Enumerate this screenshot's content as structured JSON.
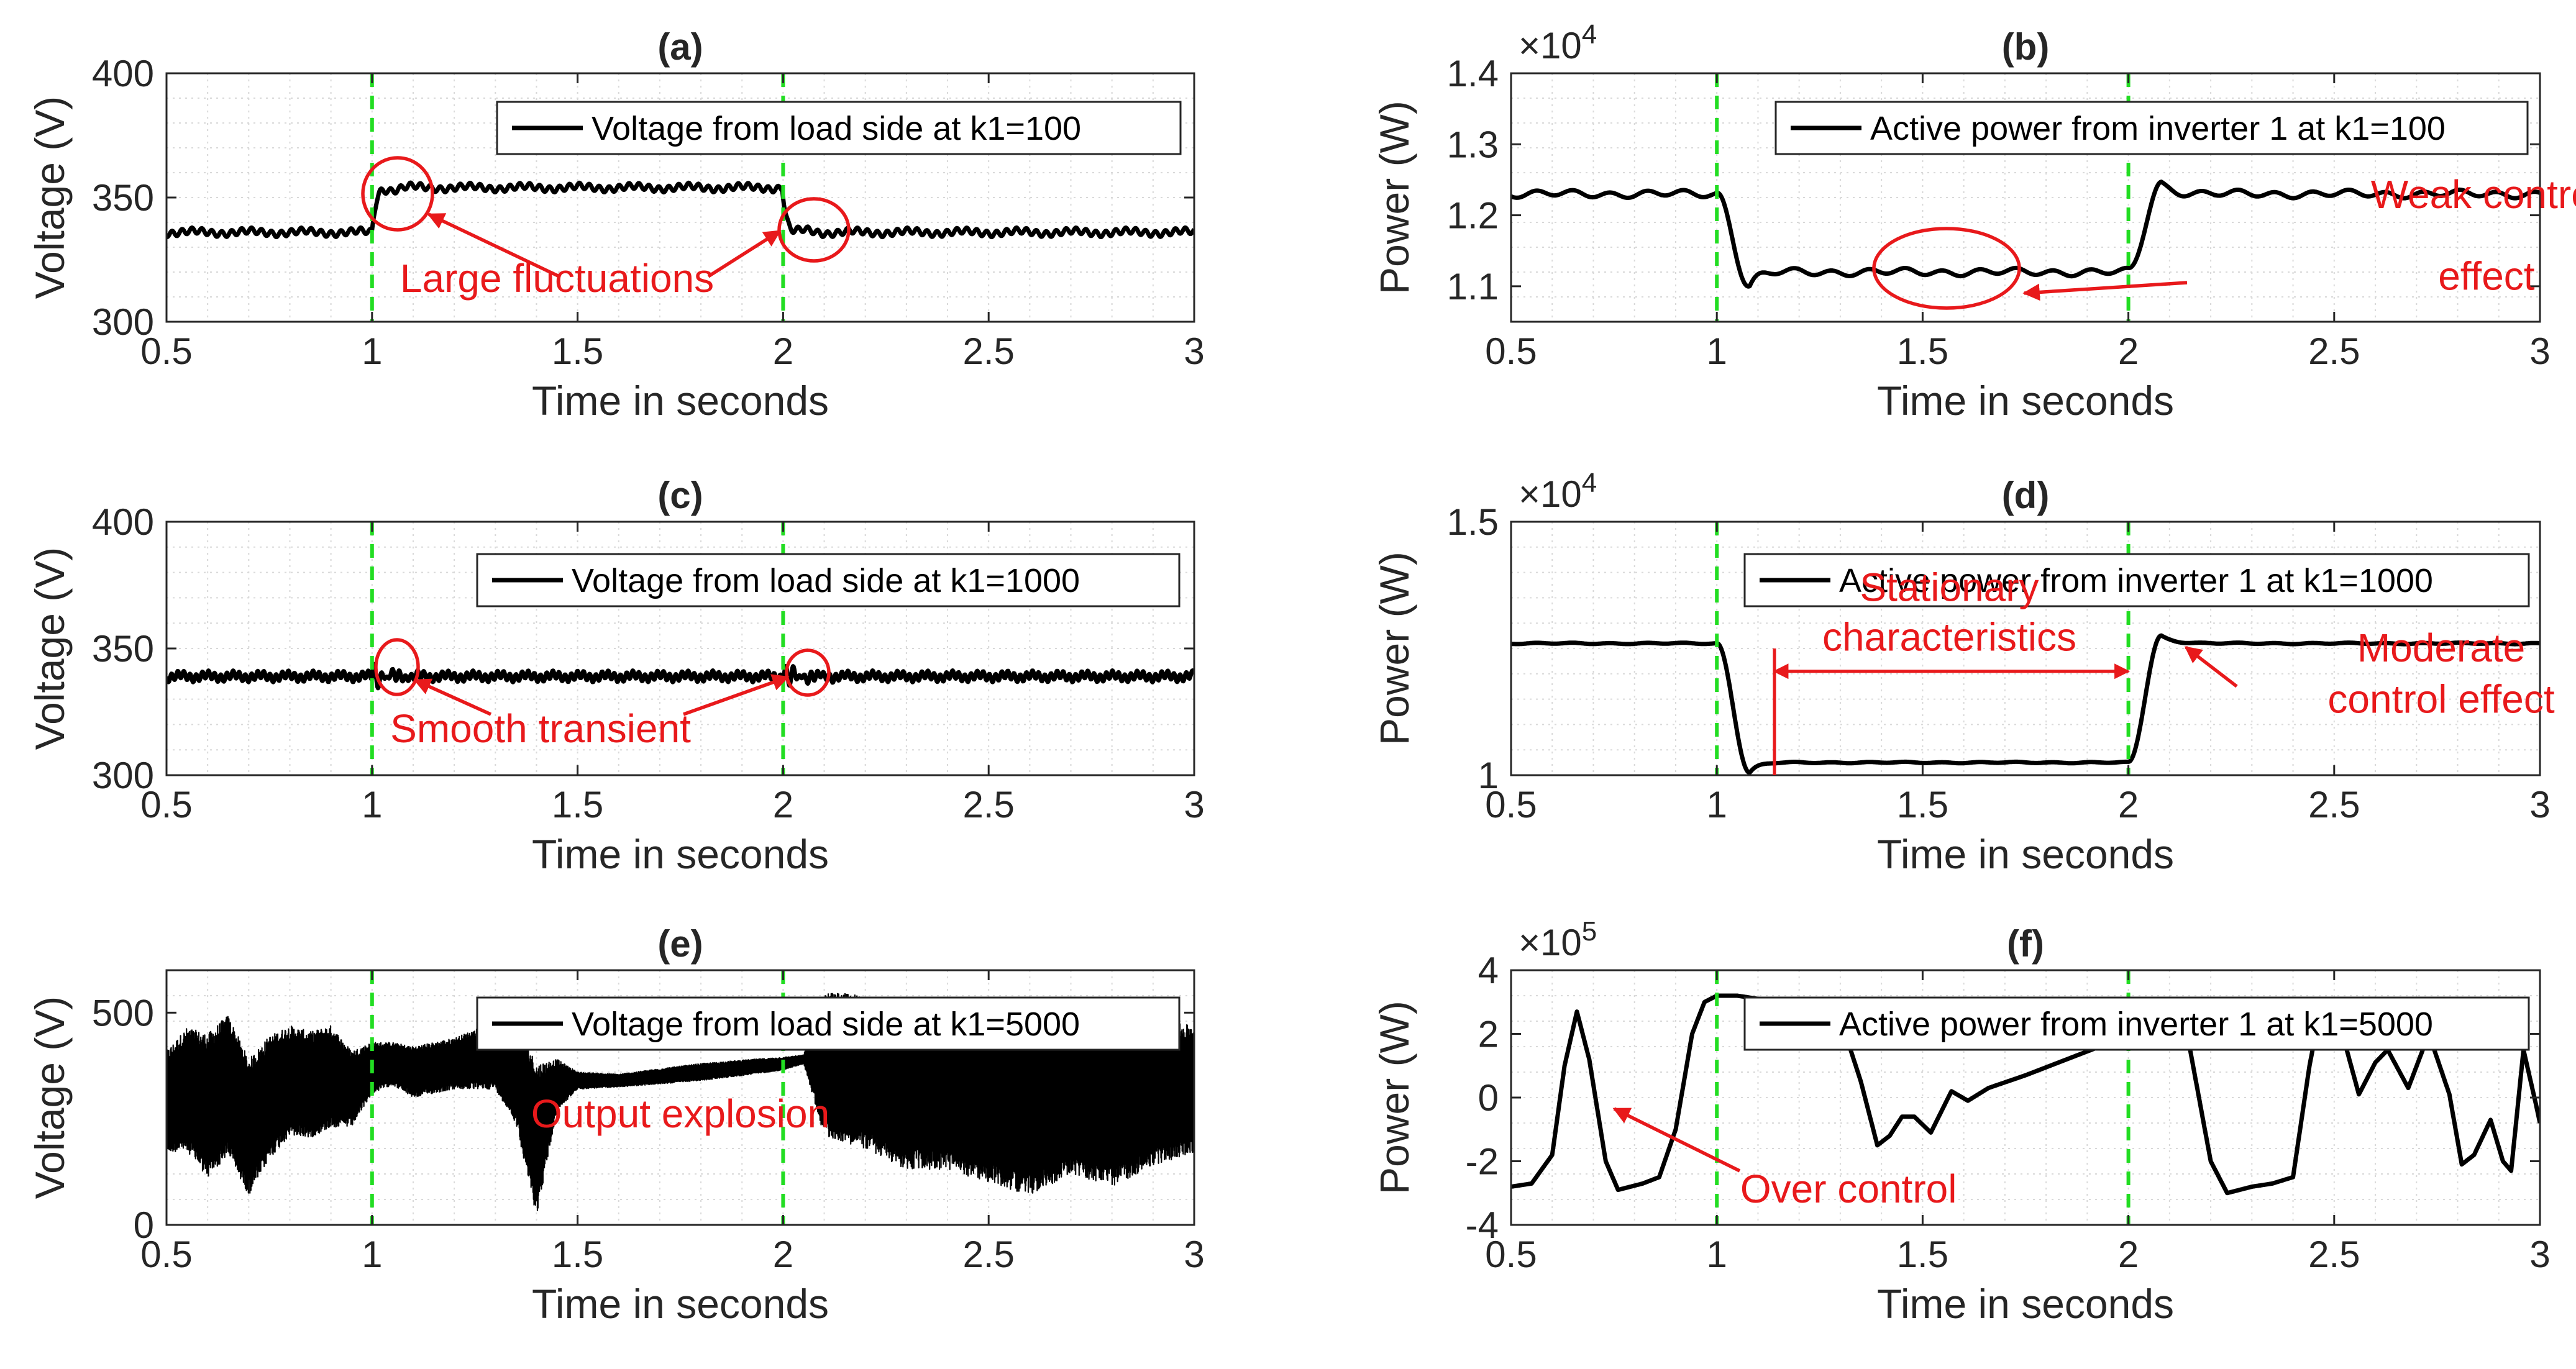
{
  "figure": {
    "background": "#ffffff",
    "vline_color": "#22dd22",
    "annotation_color": "#e8191b",
    "line_color": "#000000"
  },
  "chart_data": [
    {
      "id": "a",
      "type": "line",
      "title": "(a)",
      "xlabel": "Time in seconds",
      "ylabel": "Voltage (V)",
      "xlim": [
        0.5,
        3
      ],
      "ylim": [
        300,
        400
      ],
      "xticks": [
        0.5,
        1,
        1.5,
        2,
        2.5,
        3
      ],
      "xtick_labels": [
        "0.5",
        "1",
        "1.5",
        "2",
        "2.5",
        "3"
      ],
      "yticks": [
        300,
        350,
        400
      ],
      "ytick_labels": [
        "300",
        "350",
        "400"
      ],
      "legend": "Voltage from load side at k1=100",
      "vlines": [
        1,
        2
      ],
      "grid": true,
      "series_model": {
        "kind": "voltage_step",
        "base": 336,
        "high": 354,
        "step_up": 1.0,
        "step_down": 2.0,
        "overshoot": 4,
        "undershoot": -5,
        "ripple": 1.2
      },
      "annotations": [
        {
          "text": "Large fluctuations",
          "x": 1.45,
          "y": 312
        }
      ]
    },
    {
      "id": "b",
      "type": "line",
      "title": "(b)",
      "xlabel": "Time in seconds",
      "ylabel": "Power (W)",
      "xlim": [
        0.5,
        3
      ],
      "ylim": [
        10500,
        14000
      ],
      "xticks": [
        0.5,
        1,
        1.5,
        2,
        2.5,
        3
      ],
      "xtick_labels": [
        "0.5",
        "1",
        "1.5",
        "2",
        "2.5",
        "3"
      ],
      "yticks": [
        11000,
        12000,
        13000,
        14000
      ],
      "ytick_labels": [
        "1.1",
        "1.2",
        "1.3",
        "1.4"
      ],
      "exponent_base": "×10",
      "exponent_power": "4",
      "legend": "Active power from inverter 1 at k1=100",
      "vlines": [
        1,
        2
      ],
      "grid": true,
      "series_model": {
        "kind": "power_step",
        "base": 12300,
        "low": 11200,
        "step_down": 1.0,
        "step_up": 2.0,
        "undershoot": 11000,
        "overshoot": 12450,
        "ripple": 40
      },
      "annotations": [
        {
          "text": "Weak control",
          "x": 2.87,
          "y": 12100
        },
        {
          "text": "effect",
          "x": 2.87,
          "y": 10950
        }
      ]
    },
    {
      "id": "c",
      "type": "line",
      "title": "(c)",
      "xlabel": "Time in seconds",
      "ylabel": "Voltage (V)",
      "xlim": [
        0.5,
        3
      ],
      "ylim": [
        300,
        400
      ],
      "xticks": [
        0.5,
        1,
        1.5,
        2,
        2.5,
        3
      ],
      "xtick_labels": [
        "0.5",
        "1",
        "1.5",
        "2",
        "2.5",
        "3"
      ],
      "yticks": [
        300,
        350,
        400
      ],
      "ytick_labels": [
        "300",
        "350",
        "400"
      ],
      "legend": "Voltage from load side at k1=1000",
      "vlines": [
        1,
        2
      ],
      "grid": true,
      "series_model": {
        "kind": "voltage_flat",
        "base": 339,
        "ripple": 1.5,
        "transient_amp": 4
      },
      "annotations": [
        {
          "text": "Smooth transient",
          "x": 1.41,
          "y": 313
        }
      ]
    },
    {
      "id": "d",
      "type": "line",
      "title": "(d)",
      "xlabel": "Time in seconds",
      "ylabel": "Power (W)",
      "xlim": [
        0.5,
        3
      ],
      "ylim": [
        10000,
        15000
      ],
      "xticks": [
        0.5,
        1,
        1.5,
        2,
        2.5,
        3
      ],
      "xtick_labels": [
        "0.5",
        "1",
        "1.5",
        "2",
        "2.5",
        "3"
      ],
      "yticks": [
        10000,
        15000
      ],
      "ytick_labels": [
        "1",
        "1.5"
      ],
      "exponent_base": "×10",
      "exponent_power": "4",
      "legend": "Active power from inverter 1 at k1=1000",
      "vlines": [
        1,
        2
      ],
      "grid": true,
      "series_model": {
        "kind": "power_step",
        "base": 12600,
        "low": 10250,
        "step_down": 1.0,
        "step_up": 2.0,
        "undershoot": 10050,
        "overshoot": 12750,
        "ripple": 10
      },
      "span_marker": {
        "x0": 1.14,
        "x1": 2.0,
        "y": 12050
      },
      "annotations": [
        {
          "text": "Stationary",
          "x": 1.565,
          "y": 13440
        },
        {
          "text": "characteristics",
          "x": 1.565,
          "y": 12460
        },
        {
          "text": "Moderate",
          "x": 2.76,
          "y": 12240
        },
        {
          "text": "control effect",
          "x": 2.76,
          "y": 11230
        }
      ]
    },
    {
      "id": "e",
      "type": "line",
      "title": "(e)",
      "xlabel": "Time in seconds",
      "ylabel": "Voltage (V)",
      "xlim": [
        0.5,
        3
      ],
      "ylim": [
        0,
        600
      ],
      "xticks": [
        0.5,
        1,
        1.5,
        2,
        2.5,
        3
      ],
      "xtick_labels": [
        "0.5",
        "1",
        "1.5",
        "2",
        "2.5",
        "3"
      ],
      "yticks": [
        0,
        500
      ],
      "ytick_labels": [
        "0",
        "500"
      ],
      "legend": "Voltage from load side at k1=5000",
      "vlines": [
        1,
        2
      ],
      "grid": true,
      "series_model": {
        "kind": "voltage_explosion"
      },
      "annotations": [
        {
          "text": "Output explosion",
          "x": 1.75,
          "y": 230
        }
      ]
    },
    {
      "id": "f",
      "type": "line",
      "title": "(f)",
      "xlabel": "Time in seconds",
      "ylabel": "Power (W)",
      "xlim": [
        0.5,
        3
      ],
      "ylim": [
        -400000,
        400000
      ],
      "xticks": [
        0.5,
        1,
        1.5,
        2,
        2.5,
        3
      ],
      "xtick_labels": [
        "0.5",
        "1",
        "1.5",
        "2",
        "2.5",
        "3"
      ],
      "yticks": [
        -400000,
        -200000,
        0,
        200000,
        400000
      ],
      "ytick_labels": [
        "-4",
        "-2",
        "0",
        "2",
        "4"
      ],
      "exponent_base": "×10",
      "exponent_power": "5",
      "legend": "Active power from inverter 1 at k1=5000",
      "vlines": [
        1,
        2
      ],
      "grid": true,
      "series_model": {
        "kind": "power_explosion"
      },
      "annotations": [
        {
          "text": "Over control",
          "x": 1.32,
          "y": -330000
        }
      ]
    }
  ]
}
